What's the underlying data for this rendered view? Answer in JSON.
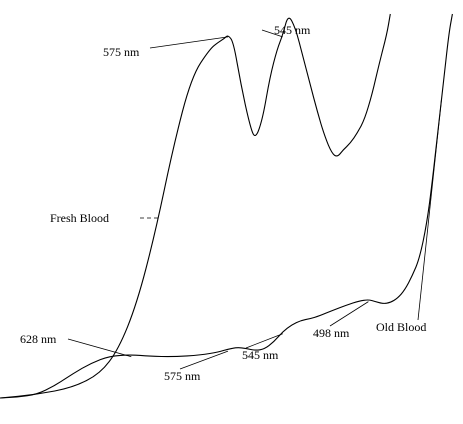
{
  "chart_data": {
    "type": "line",
    "title": "",
    "xlabel": "",
    "ylabel": "",
    "grid": false,
    "legend": "none",
    "x_direction": "wavelength decreasing to the right",
    "series": [
      {
        "name": "Fresh Blood",
        "label_text": "Fresh Blood",
        "points": [
          [
            700,
            0.0
          ],
          [
            680,
            0.01
          ],
          [
            660,
            0.03
          ],
          [
            645,
            0.07
          ],
          [
            635,
            0.14
          ],
          [
            625,
            0.27
          ],
          [
            615,
            0.47
          ],
          [
            605,
            0.72
          ],
          [
            595,
            0.92
          ],
          [
            585,
            1.0
          ],
          [
            580,
            1.02
          ],
          [
            577,
            1.03
          ],
          [
            575,
            1.04
          ],
          [
            572,
            1.02
          ],
          [
            568,
            0.9
          ],
          [
            563,
            0.78
          ],
          [
            560,
            0.74
          ],
          [
            556,
            0.8
          ],
          [
            552,
            0.92
          ],
          [
            548,
            1.0
          ],
          [
            545,
            1.04
          ],
          [
            542,
            1.1
          ],
          [
            538,
            1.06
          ],
          [
            534,
            0.98
          ],
          [
            530,
            0.9
          ],
          [
            526,
            0.82
          ],
          [
            522,
            0.75
          ],
          [
            518,
            0.7
          ],
          [
            515,
            0.69
          ],
          [
            512,
            0.71
          ],
          [
            508,
            0.73
          ],
          [
            504,
            0.76
          ],
          [
            500,
            0.8
          ],
          [
            496,
            0.87
          ],
          [
            492,
            0.96
          ],
          [
            488,
            1.04
          ],
          [
            486,
            1.1
          ]
        ]
      },
      {
        "name": "Old Blood",
        "label_text": "Old Blood",
        "points": [
          [
            700,
            0.0
          ],
          [
            690,
            0.003
          ],
          [
            680,
            0.01
          ],
          [
            670,
            0.035
          ],
          [
            660,
            0.07
          ],
          [
            650,
            0.1
          ],
          [
            640,
            0.12
          ],
          [
            628,
            0.124
          ],
          [
            618,
            0.12
          ],
          [
            605,
            0.118
          ],
          [
            590,
            0.123
          ],
          [
            580,
            0.132
          ],
          [
            575,
            0.14
          ],
          [
            570,
            0.145
          ],
          [
            565,
            0.142
          ],
          [
            560,
            0.136
          ],
          [
            555,
            0.14
          ],
          [
            550,
            0.16
          ],
          [
            545,
            0.19
          ],
          [
            540,
            0.21
          ],
          [
            535,
            0.222
          ],
          [
            530,
            0.227
          ],
          [
            525,
            0.235
          ],
          [
            518,
            0.25
          ],
          [
            510,
            0.266
          ],
          [
            503,
            0.278
          ],
          [
            498,
            0.282
          ],
          [
            494,
            0.276
          ],
          [
            490,
            0.27
          ],
          [
            486,
            0.273
          ],
          [
            482,
            0.286
          ],
          [
            478,
            0.31
          ],
          [
            474,
            0.35
          ],
          [
            470,
            0.4
          ],
          [
            466,
            0.5
          ],
          [
            463,
            0.62
          ],
          [
            460,
            0.76
          ],
          [
            457,
            0.9
          ],
          [
            454,
            1.04
          ],
          [
            452,
            1.1
          ]
        ]
      }
    ],
    "annotations": [
      {
        "text": "575 nm",
        "series": "Fresh Blood",
        "x": 575
      },
      {
        "text": "545 nm",
        "series": "Fresh Blood",
        "x": 545
      },
      {
        "text": "628 nm",
        "series": "Old Blood",
        "x": 628
      },
      {
        "text": "575 nm",
        "series": "Old Blood",
        "x": 575
      },
      {
        "text": "545 nm",
        "series": "Old Blood",
        "x": 545
      },
      {
        "text": "498 nm",
        "series": "Old Blood",
        "x": 498
      }
    ]
  }
}
